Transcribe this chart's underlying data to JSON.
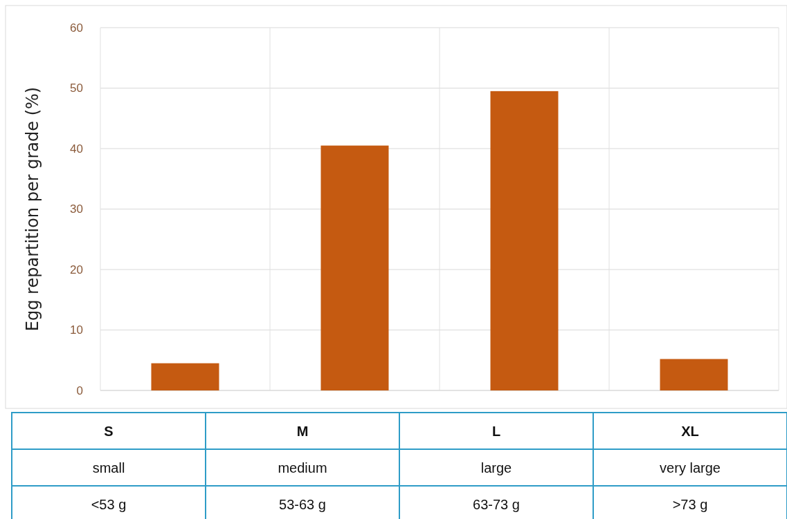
{
  "chart_data": {
    "type": "bar",
    "ylabel": "Egg repartition per grade (%)",
    "categories": [
      "S",
      "M",
      "L",
      "XL"
    ],
    "values": [
      4.5,
      40.5,
      49.5,
      5.2
    ],
    "color": "#c55a11",
    "ylim": [
      0,
      60
    ],
    "yticks": [
      0,
      10,
      20,
      30,
      40,
      50,
      60
    ],
    "grid": true,
    "annotations": [
      "small",
      "medium",
      "large",
      "very large",
      "<53 g",
      "53-63 g",
      "63-73 g",
      ">73 g"
    ]
  }
}
